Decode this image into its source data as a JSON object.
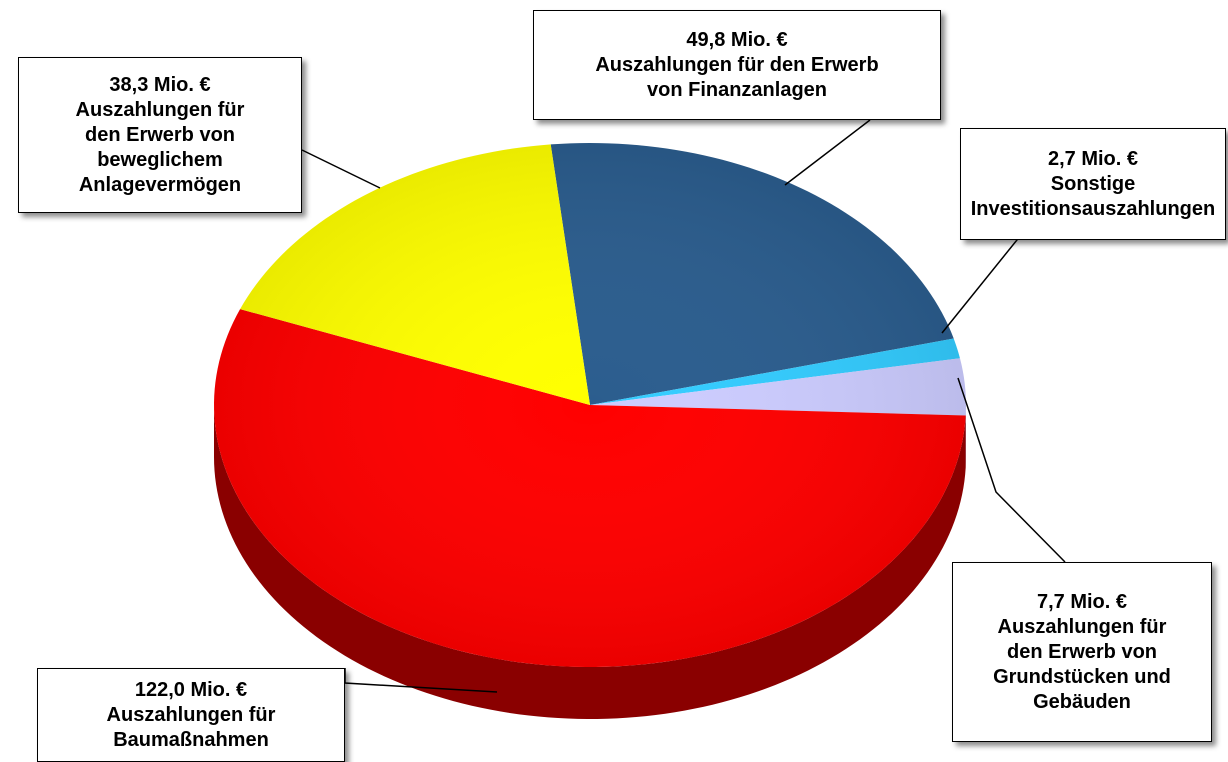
{
  "chart_data": {
    "type": "pie",
    "categories": [
      "Auszahlungen für den Erwerb\nvon Finanzanlagen",
      "Sonstige\nInvestitionsauszahlungen",
      "Auszahlungen für\nden Erwerb von\nGrundstücken und\nGebäuden",
      "Auszahlungen für\nBaumaßnahmen",
      "Auszahlungen für\nden Erwerb von\nbeweglichem\nAnlagevermögen"
    ],
    "values": [
      49.8,
      2.7,
      7.7,
      122.0,
      38.3
    ],
    "value_labels": [
      "49,8 Mio. €",
      "2,7 Mio. €",
      "7,7 Mio. €",
      "122,0 Mio. €",
      "38,3 Mio. €"
    ],
    "colors": [
      "#2b5d8e",
      "#33ccff",
      "#ccccff",
      "#ff0000",
      "#ffff00"
    ],
    "side_colors": [
      "#1a3a5a",
      "#1f8fb5",
      "#8f8fb8",
      "#8a0000",
      "#b3b300"
    ]
  }
}
